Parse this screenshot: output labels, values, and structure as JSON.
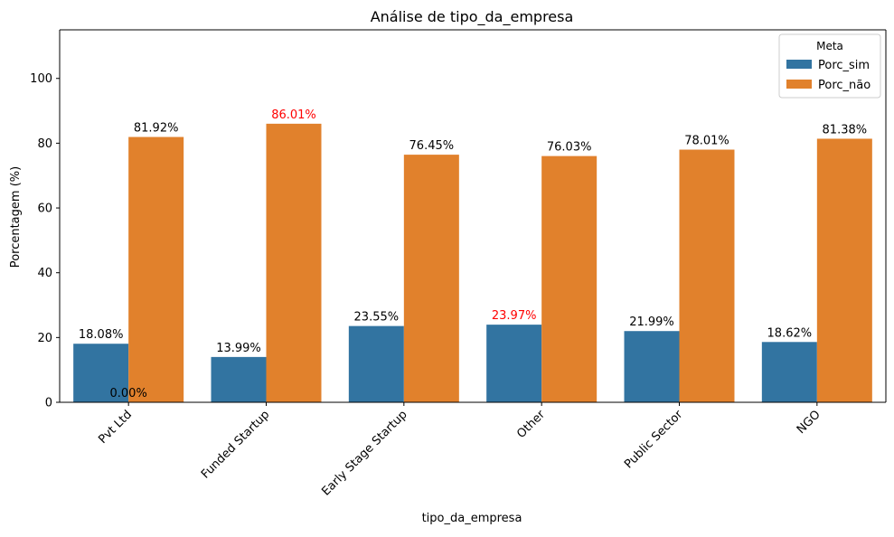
{
  "chart_data": {
    "type": "bar",
    "title": "Análise de tipo_da_empresa",
    "xlabel": "tipo_da_empresa",
    "ylabel": "Porcentagem (%)",
    "ylim": [
      0,
      115
    ],
    "yticks": [
      0,
      20,
      40,
      60,
      80,
      100
    ],
    "categories": [
      "Pvt Ltd",
      "Funded Startup",
      "Early Stage Startup",
      "Other",
      "Public Sector",
      "NGO"
    ],
    "series": [
      {
        "name": "Porc_sim",
        "color": "#3274a1",
        "values": [
          18.08,
          13.99,
          23.55,
          23.97,
          21.99,
          18.62
        ],
        "labels": [
          "18.08%",
          "13.99%",
          "23.55%",
          "23.97%",
          "21.99%",
          "18.62%"
        ],
        "highlight": [
          false,
          false,
          false,
          true,
          false,
          false
        ]
      },
      {
        "name": "Porc_não",
        "color": "#e1812c",
        "values": [
          81.92,
          86.01,
          76.45,
          76.03,
          78.01,
          81.38
        ],
        "labels": [
          "81.92%",
          "86.01%",
          "76.45%",
          "76.03%",
          "78.01%",
          "81.38%"
        ],
        "highlight": [
          false,
          true,
          false,
          false,
          false,
          false
        ]
      }
    ],
    "extra_label": "0.00%",
    "highlight_color": "#ff0000",
    "legend": {
      "title": "Meta",
      "position": "top-right"
    },
    "grid": false
  }
}
